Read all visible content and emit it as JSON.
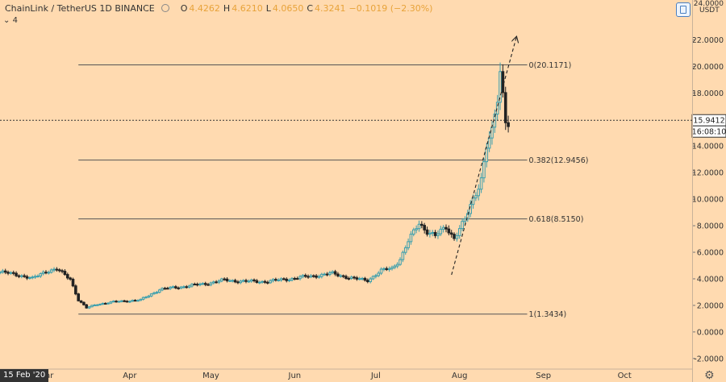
{
  "header": {
    "symbol": "ChainLink / TetherUS  1D  BINANCE",
    "o_label": "O",
    "o": "4.4262",
    "h_label": "H",
    "h": "4.6210",
    "l_label": "L",
    "l": "4.0650",
    "c_label": "C",
    "c": "4.3241",
    "change": "−0.1019 (−2.30%)",
    "sub": "4"
  },
  "axis": {
    "currency": "USDT",
    "top_partial": "24.0000"
  },
  "crosshair": {
    "price_label": "15.9412",
    "time_label": "16:08:10"
  },
  "cursor_date": "15 Feb '20",
  "colors": {
    "background": "#ffdab0",
    "up": "#3a9fae",
    "down": "#222222",
    "accent": "#e8a33a",
    "fib": "#555555"
  },
  "chart_data": {
    "type": "candlestick",
    "yticks": [
      -2,
      0,
      2,
      4,
      6,
      8,
      10,
      12,
      14,
      16,
      18,
      20,
      22
    ],
    "ylim": [
      -2.8,
      25
    ],
    "xticks": [
      {
        "label": "Mar",
        "date": "2020-03-01"
      },
      {
        "label": "Apr",
        "date": "2020-04-01"
      },
      {
        "label": "May",
        "date": "2020-05-01"
      },
      {
        "label": "Jun",
        "date": "2020-06-01"
      },
      {
        "label": "Jul",
        "date": "2020-07-01"
      },
      {
        "label": "Aug",
        "date": "2020-08-01"
      },
      {
        "label": "Sep",
        "date": "2020-09-01"
      },
      {
        "label": "Oct",
        "date": "2020-10-01"
      }
    ],
    "xrange": [
      "2020-02-13",
      "2020-10-26"
    ],
    "fib_levels": [
      {
        "label": "0(20.1171)",
        "value": 20.1171
      },
      {
        "label": "0.382(12.9456)",
        "value": 12.9456
      },
      {
        "label": "0.618(8.5150)",
        "value": 8.515
      },
      {
        "label": "1(1.3434)",
        "value": 1.3434
      }
    ],
    "trendline": [
      {
        "date": "2020-07-29",
        "value": 4.3
      },
      {
        "date": "2020-08-22",
        "value": 22.2
      }
    ],
    "close_points": [
      {
        "date": "2020-02-13",
        "value": 4.5
      },
      {
        "date": "2020-02-20",
        "value": 4.3
      },
      {
        "date": "2020-02-25",
        "value": 4.0
      },
      {
        "date": "2020-03-01",
        "value": 4.6
      },
      {
        "date": "2020-03-05",
        "value": 4.7
      },
      {
        "date": "2020-03-10",
        "value": 4.0
      },
      {
        "date": "2020-03-13",
        "value": 2.4
      },
      {
        "date": "2020-03-16",
        "value": 1.8
      },
      {
        "date": "2020-03-20",
        "value": 2.1
      },
      {
        "date": "2020-03-28",
        "value": 2.3
      },
      {
        "date": "2020-04-05",
        "value": 2.4
      },
      {
        "date": "2020-04-12",
        "value": 3.2
      },
      {
        "date": "2020-04-20",
        "value": 3.4
      },
      {
        "date": "2020-04-28",
        "value": 3.6
      },
      {
        "date": "2020-05-06",
        "value": 3.9
      },
      {
        "date": "2020-05-14",
        "value": 3.8
      },
      {
        "date": "2020-05-22",
        "value": 3.8
      },
      {
        "date": "2020-05-30",
        "value": 4.0
      },
      {
        "date": "2020-06-07",
        "value": 4.2
      },
      {
        "date": "2020-06-15",
        "value": 4.4
      },
      {
        "date": "2020-06-23",
        "value": 4.0
      },
      {
        "date": "2020-06-28",
        "value": 3.9
      },
      {
        "date": "2020-07-03",
        "value": 4.6
      },
      {
        "date": "2020-07-07",
        "value": 4.8
      },
      {
        "date": "2020-07-10",
        "value": 5.5
      },
      {
        "date": "2020-07-13",
        "value": 6.8
      },
      {
        "date": "2020-07-17",
        "value": 8.2
      },
      {
        "date": "2020-07-20",
        "value": 7.6
      },
      {
        "date": "2020-07-23",
        "value": 7.2
      },
      {
        "date": "2020-07-27",
        "value": 7.9
      },
      {
        "date": "2020-07-30",
        "value": 7.1
      },
      {
        "date": "2020-08-03",
        "value": 8.4
      },
      {
        "date": "2020-08-06",
        "value": 10.0
      },
      {
        "date": "2020-08-09",
        "value": 11.6
      },
      {
        "date": "2020-08-11",
        "value": 14.0
      },
      {
        "date": "2020-08-13",
        "value": 14.9
      },
      {
        "date": "2020-08-15",
        "value": 17.5
      },
      {
        "date": "2020-08-16",
        "value": 19.6
      },
      {
        "date": "2020-08-17",
        "value": 18.0
      },
      {
        "date": "2020-08-18",
        "value": 16.2
      },
      {
        "date": "2020-08-19",
        "value": 15.9
      }
    ]
  }
}
